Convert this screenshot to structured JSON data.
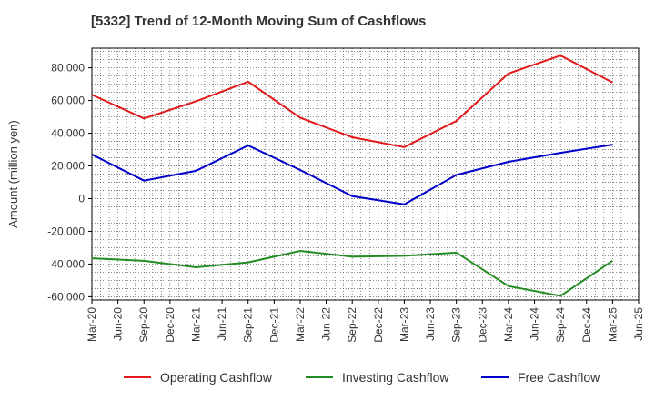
{
  "chart_data": {
    "type": "line",
    "title": "[5332]  Trend of 12-Month Moving Sum of Cashflows",
    "xlabel": "",
    "ylabel": "Amount (million yen)",
    "ylim": [
      -62000,
      92000
    ],
    "yticks": [
      -60000,
      -40000,
      -20000,
      0,
      20000,
      40000,
      60000,
      80000
    ],
    "ytick_labels": [
      "-60,000",
      "-40,000",
      "-20,000",
      "0",
      "20,000",
      "40,000",
      "60,000",
      "80,000"
    ],
    "x_tick_labels": [
      "Mar-20",
      "Jun-20",
      "Sep-20",
      "Dec-20",
      "Mar-21",
      "Jun-21",
      "Sep-21",
      "Dec-21",
      "Mar-22",
      "Jun-22",
      "Sep-22",
      "Dec-22",
      "Mar-23",
      "Jun-23",
      "Sep-23",
      "Dec-23",
      "Mar-24",
      "Jun-24",
      "Sep-24",
      "Dec-24",
      "Mar-25",
      "Jun-25"
    ],
    "x": [
      "Mar-20",
      "Sep-20",
      "Mar-21",
      "Sep-21",
      "Mar-22",
      "Sep-22",
      "Mar-23",
      "Sep-23",
      "Mar-24",
      "Sep-24",
      "Mar-25"
    ],
    "grid": true,
    "legend_position": "bottom",
    "series": [
      {
        "name": "Operating Cashflow",
        "color": "#e31a1c",
        "values": [
          63500,
          49000,
          59500,
          71500,
          49500,
          37500,
          31500,
          47500,
          76500,
          87500,
          71000
        ]
      },
      {
        "name": "Investing Cashflow",
        "color": "#228b22",
        "values": [
          -36500,
          -38000,
          -42000,
          -39000,
          -32000,
          -35500,
          -35000,
          -33000,
          -53500,
          -59500,
          -38000
        ]
      },
      {
        "name": "Free Cashflow",
        "color": "#0000cd",
        "values": [
          27000,
          11000,
          17000,
          32500,
          17500,
          1500,
          -3500,
          14500,
          22500,
          28000,
          33000
        ]
      }
    ]
  }
}
